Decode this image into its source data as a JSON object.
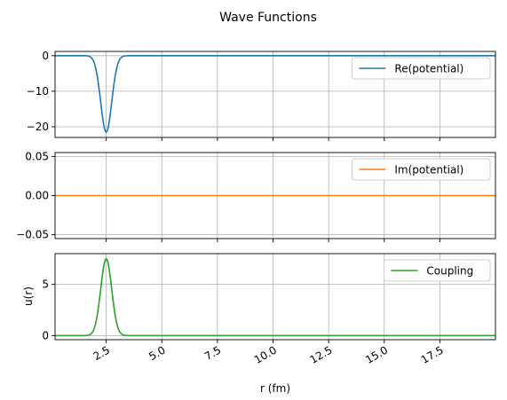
{
  "title": "Wave Functions",
  "colors": {
    "series1": "#1f77b4",
    "series2": "#ff7f0e",
    "series3": "#2ca02c",
    "grid": "#b0b0b0"
  },
  "chart_data": [
    {
      "type": "line",
      "series": [
        {
          "name": "Re(potential)",
          "x_center": 2.5,
          "amplitude": -21.5,
          "width": 0.35
        }
      ],
      "xlim": [
        0.2,
        20
      ],
      "ylim": [
        -23,
        1.2
      ],
      "yticks": [
        0,
        -10,
        -20
      ],
      "ytick_labels": [
        "0",
        "−10",
        "−20"
      ],
      "xticks": [
        2.5,
        5.0,
        7.5,
        10.0,
        12.5,
        15.0,
        17.5
      ],
      "grid": true,
      "legend": "upper right"
    },
    {
      "type": "line",
      "series": [
        {
          "name": "Im(potential)",
          "x_center": 2.5,
          "amplitude": 0.0,
          "width": 0.35
        }
      ],
      "xlim": [
        0.2,
        20
      ],
      "ylim": [
        -0.055,
        0.055
      ],
      "yticks": [
        0.05,
        0.0,
        -0.05
      ],
      "ytick_labels": [
        "0.05",
        "0.00",
        "−0.05"
      ],
      "xticks": [
        2.5,
        5.0,
        7.5,
        10.0,
        12.5,
        15.0,
        17.5
      ],
      "grid": true,
      "legend": "upper right"
    },
    {
      "type": "line",
      "series": [
        {
          "name": "Coupling",
          "x_center": 2.5,
          "amplitude": 7.5,
          "width": 0.35
        }
      ],
      "xlim": [
        0.2,
        20
      ],
      "ylim": [
        -0.4,
        8.0
      ],
      "yticks": [
        0,
        5
      ],
      "ytick_labels": [
        "0",
        "5"
      ],
      "xticks": [
        2.5,
        5.0,
        7.5,
        10.0,
        12.5,
        15.0,
        17.5
      ],
      "xtick_labels": [
        "2.5",
        "5.0",
        "7.5",
        "10.0",
        "12.5",
        "15.0",
        "17.5"
      ],
      "grid": true,
      "legend": "upper right",
      "xlabel": "r (fm)",
      "ylabel": "u(r)"
    }
  ]
}
